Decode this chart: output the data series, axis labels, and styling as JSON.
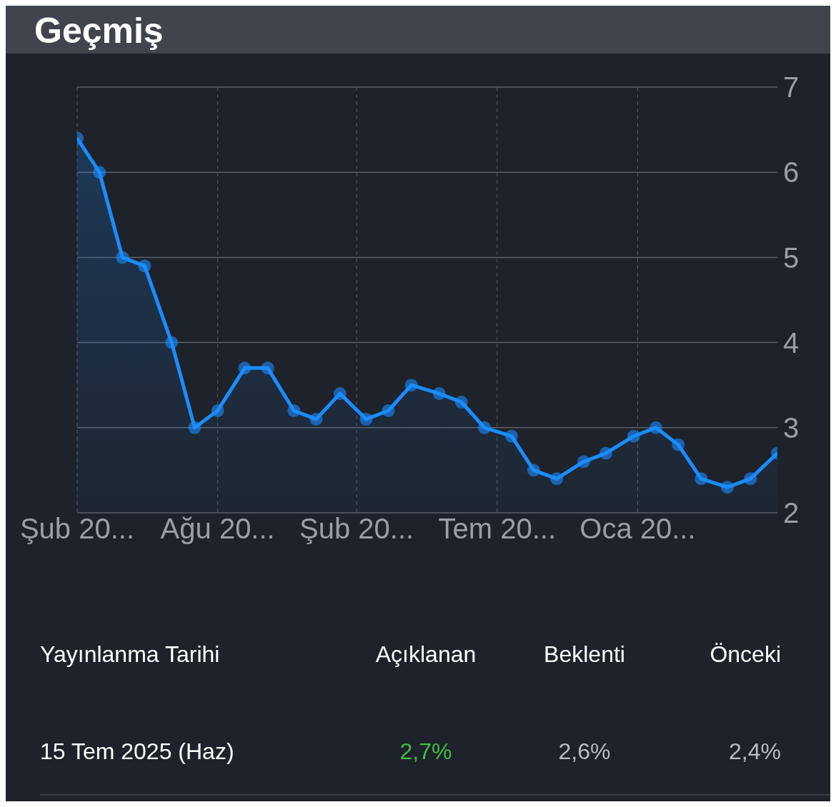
{
  "chart_data": {
    "type": "area",
    "title": "Geçmiş",
    "x": [
      "2023-02-14",
      "2023-03-14",
      "2023-04-12",
      "2023-05-10",
      "2023-06-13",
      "2023-07-12",
      "2023-08-10",
      "2023-09-13",
      "2023-10-12",
      "2023-11-14",
      "2023-12-12",
      "2024-01-11",
      "2024-02-13",
      "2024-03-12",
      "2024-04-10",
      "2024-05-15",
      "2024-06-12",
      "2024-07-11",
      "2024-08-14",
      "2024-09-11",
      "2024-10-10",
      "2024-11-13",
      "2024-12-11",
      "2025-01-15",
      "2025-02-12",
      "2025-03-12",
      "2025-04-10",
      "2025-05-13",
      "2025-06-11",
      "2025-07-15"
    ],
    "values": [
      6.4,
      6.0,
      5.0,
      4.9,
      4.0,
      3.0,
      3.2,
      3.7,
      3.7,
      3.2,
      3.1,
      3.4,
      3.1,
      3.2,
      3.5,
      3.4,
      3.3,
      3.0,
      2.9,
      2.5,
      2.4,
      2.6,
      2.7,
      2.9,
      3.0,
      2.8,
      2.4,
      2.3,
      2.4,
      2.7
    ],
    "color": "#1a8cff",
    "marker": "circle",
    "grid": true,
    "xlim": [
      "2023-02-14",
      "2025-07-15"
    ],
    "xticks": [
      {
        "value": "2023-02-14",
        "label": "Şub 20..."
      },
      {
        "value": "2023-08-10",
        "label": "Ağu 20..."
      },
      {
        "value": "2024-02-01",
        "label": "Şub 20..."
      },
      {
        "value": "2024-07-27",
        "label": "Tem 20..."
      },
      {
        "value": "2025-01-20",
        "label": "Oca 20..."
      }
    ],
    "ylim": [
      2,
      7
    ],
    "yticks": [
      2,
      3,
      4,
      5,
      6,
      7
    ],
    "annotations": [
      "Yayınlanma Tarihi",
      "Açıklanan",
      "Beklenti",
      "Önceki",
      "15 Tem 2025 (Haz)",
      "2,7%",
      "2,6%",
      "2,4%"
    ]
  }
}
